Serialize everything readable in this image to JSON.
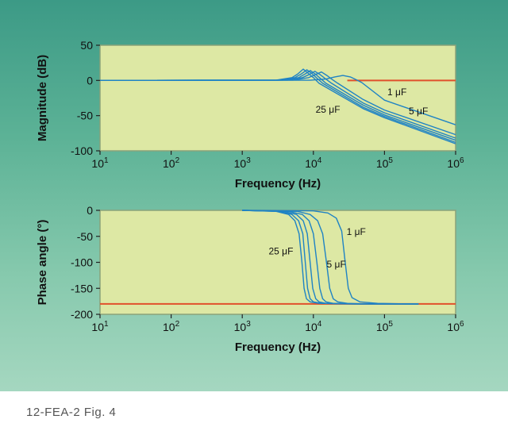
{
  "caption": "12-FEA-2  Fig. 4",
  "colors": {
    "plot_bg": "#dde8a4",
    "curve": "#1f83c4",
    "reference": "#e0502c",
    "frame": "#8aa27a"
  },
  "chart_data": [
    {
      "type": "line",
      "title": "",
      "xlabel": "Frequency (Hz)",
      "ylabel": "Magnitude (dB)",
      "x_scale": "log",
      "xlim": [
        10,
        1000000
      ],
      "ylim": [
        -100,
        50
      ],
      "xticks": [
        {
          "value": 10,
          "base": "10",
          "exp": "1"
        },
        {
          "value": 100,
          "base": "10",
          "exp": "2"
        },
        {
          "value": 1000,
          "base": "10",
          "exp": "3"
        },
        {
          "value": 10000,
          "base": "10",
          "exp": "4"
        },
        {
          "value": 100000,
          "base": "10",
          "exp": "5"
        },
        {
          "value": 1000000,
          "base": "10",
          "exp": "6"
        }
      ],
      "yticks": [
        50,
        0,
        -50,
        -100
      ],
      "grid": false,
      "reference_line": {
        "y": 0,
        "from_x": 30000,
        "to_x": 1000000
      },
      "series": [
        {
          "x": [
            10,
            3000,
            5000,
            6000,
            7200,
            8500,
            10000,
            12000,
            50000,
            100000,
            1000000
          ],
          "y": [
            0,
            0.5,
            4,
            9,
            16,
            10,
            4,
            -4,
            -40,
            -53,
            -90
          ]
        },
        {
          "x": [
            10,
            3300,
            5500,
            6700,
            8100,
            9500,
            11000,
            13500,
            50000,
            100000,
            1000000
          ],
          "y": [
            0,
            0.5,
            4,
            9,
            15,
            10,
            4,
            -4,
            -38,
            -51,
            -88
          ]
        },
        {
          "x": [
            10,
            3700,
            6200,
            7600,
            9100,
            10700,
            12500,
            15000,
            50000,
            100000,
            1000000
          ],
          "y": [
            0,
            0.5,
            4,
            9,
            14,
            9,
            3,
            -4,
            -35,
            -49,
            -85
          ]
        },
        {
          "x": [
            10,
            4300,
            7000,
            8600,
            10500,
            12500,
            14500,
            18000,
            50000,
            100000,
            1000000
          ],
          "y": [
            0,
            0.5,
            4,
            8,
            13,
            8,
            3,
            -4,
            -32,
            -46,
            -82
          ]
        },
        {
          "x": [
            10,
            5200,
            8600,
            10500,
            13000,
            15500,
            18000,
            22000,
            50000,
            100000,
            1000000
          ],
          "y": [
            0,
            0.5,
            4,
            8,
            12,
            7,
            2,
            -4,
            -27,
            -42,
            -77
          ]
        },
        {
          "x": [
            10,
            9000,
            15000,
            20000,
            26000,
            33000,
            40000,
            48000,
            100000,
            1000000
          ],
          "y": [
            0,
            0.3,
            2,
            5,
            7,
            5,
            1,
            -3,
            -28,
            -63
          ]
        }
      ],
      "annotations": [
        {
          "text": "1 μF",
          "x": 150000,
          "y": -21
        },
        {
          "text": "25 μF",
          "x": 16000,
          "y": -46
        },
        {
          "text": "5 μF",
          "x": 300000,
          "y": -48
        }
      ]
    },
    {
      "type": "line",
      "title": "",
      "xlabel": "Frequency (Hz)",
      "ylabel": "Phase angle (°)",
      "x_scale": "log",
      "xlim": [
        10,
        1000000
      ],
      "ylim": [
        -200,
        0
      ],
      "xticks": [
        {
          "value": 10,
          "base": "10",
          "exp": "1"
        },
        {
          "value": 100,
          "base": "10",
          "exp": "2"
        },
        {
          "value": 1000,
          "base": "10",
          "exp": "3"
        },
        {
          "value": 10000,
          "base": "10",
          "exp": "4"
        },
        {
          "value": 100000,
          "base": "10",
          "exp": "5"
        },
        {
          "value": 1000000,
          "base": "10",
          "exp": "6"
        }
      ],
      "yticks": [
        0,
        -50,
        -100,
        -150,
        -200
      ],
      "grid": false,
      "reference_line": {
        "y": -180,
        "from_x": 10,
        "to_x": 1000000
      },
      "series": [
        {
          "x": [
            1000,
            3000,
            4500,
            5500,
            6300,
            6900,
            7400,
            8000,
            9000,
            12000,
            30000,
            300000
          ],
          "y": [
            0,
            -2,
            -8,
            -20,
            -45,
            -100,
            -150,
            -170,
            -176,
            -179,
            -180,
            -180
          ]
        },
        {
          "x": [
            1000,
            3300,
            5000,
            6200,
            7100,
            7700,
            8300,
            9000,
            10000,
            13000,
            35000,
            300000
          ],
          "y": [
            0,
            -2,
            -8,
            -20,
            -45,
            -100,
            -150,
            -170,
            -176,
            -179,
            -180,
            -180
          ]
        },
        {
          "x": [
            1000,
            3800,
            5800,
            7200,
            8200,
            9000,
            9800,
            10800,
            12000,
            15000,
            40000,
            300000
          ],
          "y": [
            0,
            -2,
            -8,
            -20,
            -45,
            -100,
            -150,
            -170,
            -176,
            -179,
            -180,
            -180
          ]
        },
        {
          "x": [
            1000,
            4500,
            7000,
            8700,
            10000,
            11200,
            12300,
            13500,
            15000,
            19000,
            45000,
            300000
          ],
          "y": [
            0,
            -2,
            -8,
            -20,
            -45,
            -100,
            -150,
            -170,
            -176,
            -179,
            -180,
            -180
          ]
        },
        {
          "x": [
            1000,
            6000,
            9000,
            11500,
            13500,
            15300,
            17000,
            19000,
            22000,
            30000,
            60000,
            300000
          ],
          "y": [
            0,
            -2,
            -8,
            -20,
            -45,
            -100,
            -150,
            -170,
            -176,
            -179,
            -180,
            -180
          ]
        },
        {
          "x": [
            1000,
            10000,
            16000,
            21000,
            25000,
            28000,
            31000,
            35000,
            45000,
            80000,
            200000,
            300000
          ],
          "y": [
            0,
            -1,
            -5,
            -15,
            -40,
            -100,
            -150,
            -168,
            -176,
            -179,
            -180,
            -180
          ]
        }
      ],
      "annotations": [
        {
          "text": "1 μF",
          "x": 40000,
          "y": -47
        },
        {
          "text": "25 μF",
          "x": 3500,
          "y": -85
        },
        {
          "text": "5 μF",
          "x": 21000,
          "y": -110
        }
      ]
    }
  ]
}
